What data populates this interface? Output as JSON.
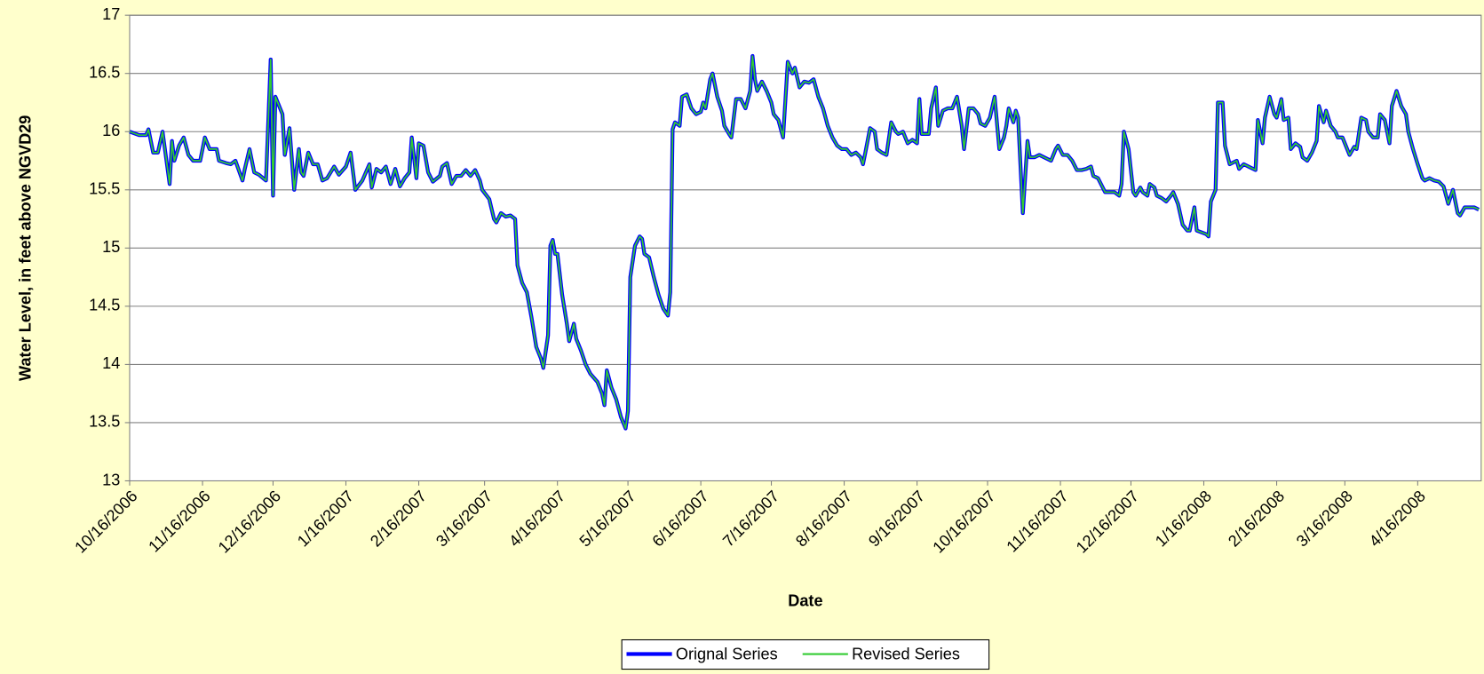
{
  "chart_data": {
    "type": "line",
    "y_label": "Water Level, in feet above NGVD29",
    "x_label": "Date",
    "ylim": [
      13,
      17
    ],
    "yticks": [
      13,
      13.5,
      14,
      14.5,
      15,
      15.5,
      16,
      16.5,
      17
    ],
    "xlim": [
      "10/16/2006",
      "5/13/2008"
    ],
    "xticks": [
      "10/16/2006",
      "11/16/2006",
      "12/16/2006",
      "1/16/2007",
      "2/16/2007",
      "3/16/2007",
      "4/16/2007",
      "5/16/2007",
      "6/16/2007",
      "7/16/2007",
      "8/16/2007",
      "9/16/2007",
      "10/16/2007",
      "11/16/2007",
      "12/16/2007",
      "1/16/2008",
      "2/16/2008",
      "3/16/2008",
      "4/16/2008"
    ],
    "grid": true,
    "legend": "bottom",
    "x": [
      "10/16/2006",
      "10/20/2006",
      "10/23/2006",
      "10/24/2006",
      "10/26/2006",
      "10/28/2006",
      "10/30/2006",
      "11/2/2006",
      "11/3/2006",
      "11/4/2006",
      "11/6/2006",
      "11/8/2006",
      "11/10/2006",
      "11/12/2006",
      "11/15/2006",
      "11/17/2006",
      "11/19/2006",
      "11/22/2006",
      "11/23/2006",
      "11/26/2006",
      "11/28/2006",
      "11/30/2006",
      "12/3/2006",
      "12/4/2006",
      "12/6/2006",
      "12/8/2006",
      "12/10/2006",
      "12/13/2006",
      "12/15/2006",
      "12/16/2006",
      "12/17/2006",
      "12/20/2006",
      "12/21/2006",
      "12/23/2006",
      "12/25/2006",
      "12/27/2006",
      "12/28/2006",
      "12/29/2006",
      "12/31/2006",
      "1/2/2007",
      "1/4/2007",
      "1/6/2007",
      "1/8/2007",
      "1/11/2007",
      "1/13/2007",
      "1/16/2007",
      "1/18/2007",
      "1/20/2007",
      "1/23/2007",
      "1/26/2007",
      "1/27/2007",
      "1/29/2007",
      "1/31/2007",
      "2/2/2007",
      "2/4/2007",
      "2/6/2007",
      "2/8/2007",
      "2/10/2007",
      "2/12/2007",
      "2/13/2007",
      "2/15/2007",
      "2/16/2007",
      "2/18/2007",
      "2/20/2007",
      "2/22/2007",
      "2/25/2007",
      "2/26/2007",
      "2/28/2007",
      "3/2/2007",
      "3/4/2007",
      "3/6/2007",
      "3/8/2007",
      "3/10/2007",
      "3/12/2007",
      "3/14/2007",
      "3/15/2007",
      "3/18/2007",
      "3/20/2007",
      "3/21/2007",
      "3/23/2007",
      "3/25/2007",
      "3/27/2007",
      "3/29/2007",
      "3/30/2007",
      "4/1/2007",
      "4/3/2007",
      "4/5/2007",
      "4/7/2007",
      "4/9/2007",
      "4/10/2007",
      "4/12/2007",
      "4/13/2007",
      "4/14/2007",
      "4/15/2007",
      "4/16/2007",
      "4/18/2007",
      "4/20/2007",
      "4/21/2007",
      "4/23/2007",
      "4/24/2007",
      "4/26/2007",
      "4/28/2007",
      "4/30/2007",
      "5/3/2007",
      "5/5/2007",
      "5/6/2007",
      "5/7/2007",
      "5/9/2007",
      "5/11/2007",
      "5/13/2007",
      "5/15/2007",
      "5/16/2007",
      "5/17/2007",
      "5/19/2007",
      "5/21/2007",
      "5/22/2007",
      "5/23/2007",
      "5/25/2007",
      "5/27/2007",
      "5/29/2007",
      "5/31/2007",
      "6/2/2007",
      "6/3/2007",
      "6/4/2007",
      "6/5/2007",
      "6/7/2007",
      "6/8/2007",
      "6/10/2007",
      "6/12/2007",
      "6/14/2007",
      "6/16/2007",
      "6/17/2007",
      "6/18/2007",
      "6/20/2007",
      "6/21/2007",
      "6/23/2007",
      "6/25/2007",
      "6/26/2007",
      "6/28/2007",
      "6/29/2007",
      "7/1/2007",
      "7/3/2007",
      "7/5/2007",
      "7/7/2007",
      "7/8/2007",
      "7/9/2007",
      "7/10/2007",
      "7/12/2007",
      "7/14/2007",
      "7/16/2007",
      "7/17/2007",
      "7/19/2007",
      "7/21/2007",
      "7/23/2007",
      "7/25/2007",
      "7/26/2007",
      "7/28/2007",
      "7/30/2007",
      "8/1/2007",
      "8/3/2007",
      "8/5/2007",
      "8/7/2007",
      "8/9/2007",
      "8/11/2007",
      "8/13/2007",
      "8/15/2007",
      "8/17/2007",
      "8/19/2007",
      "8/21/2007",
      "8/23/2007",
      "8/24/2007",
      "8/25/2007",
      "8/27/2007",
      "8/29/2007",
      "8/30/2007",
      "9/1/2007",
      "9/3/2007",
      "9/5/2007",
      "9/7/2007",
      "9/8/2007",
      "9/10/2007",
      "9/12/2007",
      "9/14/2007",
      "9/16/2007",
      "9/17/2007",
      "9/18/2007",
      "9/21/2007",
      "9/22/2007",
      "9/24/2007",
      "9/25/2007",
      "9/27/2007",
      "9/29/2007",
      "10/1/2007",
      "10/3/2007",
      "10/5/2007",
      "10/6/2007",
      "10/8/2007",
      "10/10/2007",
      "10/12/2007",
      "10/13/2007",
      "10/15/2007",
      "10/17/2007",
      "10/19/2007",
      "10/21/2007",
      "10/23/2007",
      "10/24/2007",
      "10/25/2007",
      "10/27/2007",
      "10/28/2007",
      "10/29/2007",
      "10/31/2007",
      "11/2/2007",
      "11/3/2007",
      "11/5/2007",
      "11/7/2007",
      "11/9/2007",
      "11/12/2007",
      "11/14/2007",
      "11/15/2007",
      "11/17/2007",
      "11/19/2007",
      "11/21/2007",
      "11/23/2007",
      "11/25/2007",
      "11/27/2007",
      "11/29/2007",
      "11/30/2007",
      "12/2/2007",
      "12/4/2007",
      "12/5/2007",
      "12/8/2007",
      "12/9/2007",
      "12/11/2007",
      "12/12/2007",
      "12/13/2007",
      "12/15/2007",
      "12/17/2007",
      "12/18/2007",
      "12/20/2007",
      "12/21/2007",
      "12/23/2007",
      "12/24/2007",
      "12/26/2007",
      "12/27/2007",
      "12/29/2007",
      "12/31/2007",
      "1/2/2008",
      "1/3/2008",
      "1/5/2008",
      "1/7/2008",
      "1/9/2008",
      "1/10/2008",
      "1/12/2008",
      "1/13/2008",
      "1/17/2008",
      "1/18/2008",
      "1/19/2008",
      "1/21/2008",
      "1/22/2008",
      "1/24/2008",
      "1/25/2008",
      "1/27/2008",
      "1/30/2008",
      "1/31/2008",
      "2/2/2008",
      "2/4/2008",
      "2/7/2008",
      "2/8/2008",
      "2/10/2008",
      "2/11/2008",
      "2/13/2008",
      "2/15/2008",
      "2/16/2008",
      "2/18/2008",
      "2/19/2008",
      "2/21/2008",
      "2/22/2008",
      "2/24/2008",
      "2/26/2008",
      "2/27/2008",
      "2/29/2008",
      "3/2/2008",
      "3/4/2008",
      "3/5/2008",
      "3/7/2008",
      "3/8/2008",
      "3/10/2008",
      "3/12/2008",
      "3/13/2008",
      "3/15/2008",
      "3/17/2008",
      "3/18/2008",
      "3/20/2008",
      "3/21/2008",
      "3/23/2008",
      "3/25/2008",
      "3/26/2008",
      "3/28/2008",
      "3/30/2008",
      "3/31/2008",
      "4/2/2008",
      "4/4/2008",
      "4/5/2008",
      "4/7/2008",
      "4/9/2008",
      "4/11/2008",
      "4/12/2008",
      "4/14/2008",
      "4/16/2008",
      "4/18/2008",
      "4/19/2008",
      "4/21/2008",
      "4/23/2008",
      "4/25/2008",
      "4/27/2008",
      "4/29/2008",
      "5/1/2008",
      "5/3/2008",
      "5/4/2008",
      "5/6/2008",
      "5/8/2008",
      "5/10/2008",
      "5/12/2008"
    ],
    "series": [
      {
        "name": "Orignal Series",
        "color": "#0000ff",
        "values": [
          16.0,
          15.97,
          15.97,
          16.02,
          15.82,
          15.82,
          16.0,
          15.55,
          15.92,
          15.75,
          15.88,
          15.95,
          15.8,
          15.75,
          15.75,
          15.95,
          15.85,
          15.85,
          15.75,
          15.73,
          15.72,
          15.75,
          15.58,
          15.68,
          15.85,
          15.65,
          15.63,
          15.58,
          16.62,
          15.45,
          16.3,
          16.15,
          15.8,
          16.03,
          15.5,
          15.85,
          15.65,
          15.62,
          15.82,
          15.72,
          15.72,
          15.58,
          15.6,
          15.7,
          15.63,
          15.7,
          15.82,
          15.5,
          15.58,
          15.72,
          15.52,
          15.68,
          15.65,
          15.7,
          15.55,
          15.68,
          15.53,
          15.6,
          15.65,
          15.95,
          15.6,
          15.9,
          15.88,
          15.65,
          15.57,
          15.62,
          15.7,
          15.73,
          15.55,
          15.62,
          15.62,
          15.67,
          15.62,
          15.67,
          15.58,
          15.5,
          15.42,
          15.25,
          15.22,
          15.3,
          15.27,
          15.28,
          15.25,
          14.85,
          14.7,
          14.62,
          14.4,
          14.15,
          14.05,
          13.97,
          14.25,
          15.02,
          15.07,
          14.95,
          14.95,
          14.6,
          14.35,
          14.2,
          14.35,
          14.22,
          14.12,
          14.0,
          13.92,
          13.85,
          13.75,
          13.65,
          13.95,
          13.8,
          13.7,
          13.55,
          13.45,
          13.6,
          14.75,
          15.02,
          15.1,
          15.08,
          14.95,
          14.92,
          14.75,
          14.6,
          14.48,
          14.42,
          14.62,
          16.02,
          16.08,
          16.05,
          16.3,
          16.32,
          16.2,
          16.15,
          16.17,
          16.25,
          16.2,
          16.45,
          16.5,
          16.3,
          16.18,
          16.05,
          15.98,
          15.95,
          16.28,
          16.28,
          16.2,
          16.35,
          16.65,
          16.45,
          16.35,
          16.43,
          16.35,
          16.25,
          16.15,
          16.1,
          15.95,
          16.6,
          16.5,
          16.55,
          16.38,
          16.43,
          16.42,
          16.45,
          16.3,
          16.2,
          16.05,
          15.95,
          15.88,
          15.85,
          15.85,
          15.8,
          15.82,
          15.78,
          15.72,
          15.82,
          16.03,
          16.0,
          15.85,
          15.82,
          15.8,
          16.08,
          16.0,
          15.98,
          16.0,
          15.9,
          15.93,
          15.9,
          16.28,
          15.98,
          15.98,
          16.2,
          16.38,
          16.05,
          16.18,
          16.2,
          16.2,
          16.3,
          16.05,
          15.85,
          16.2,
          16.2,
          16.15,
          16.07,
          16.05,
          16.12,
          16.3,
          15.85,
          15.95,
          16.05,
          16.2,
          16.08,
          16.18,
          16.12,
          15.3,
          15.92,
          15.78,
          15.78,
          15.8,
          15.78,
          15.75,
          15.85,
          15.88,
          15.8,
          15.8,
          15.75,
          15.67,
          15.67,
          15.68,
          15.7,
          15.62,
          15.6,
          15.52,
          15.48,
          15.48,
          15.48,
          15.45,
          15.55,
          16.0,
          15.85,
          15.48,
          15.45,
          15.52,
          15.48,
          15.45,
          15.55,
          15.52,
          15.45,
          15.43,
          15.4,
          15.45,
          15.48,
          15.38,
          15.2,
          15.15,
          15.15,
          15.35,
          15.15,
          15.12,
          15.1,
          15.4,
          15.5,
          16.25,
          16.25,
          15.88,
          15.72,
          15.75,
          15.68,
          15.72,
          15.7,
          15.67,
          16.1,
          15.9,
          16.12,
          16.3,
          16.15,
          16.12,
          16.28,
          16.1,
          16.12,
          15.85,
          15.9,
          15.87,
          15.78,
          15.75,
          15.82,
          15.92,
          16.22,
          16.08,
          16.18,
          16.05,
          16.0,
          15.95,
          15.95,
          15.85,
          15.8,
          15.87,
          15.85,
          16.12,
          16.1,
          16.0,
          15.95,
          15.95,
          16.15,
          16.1,
          15.9,
          16.22,
          16.35,
          16.22,
          16.15,
          16.0,
          15.85,
          15.72,
          15.6,
          15.58,
          15.6,
          15.58,
          15.57,
          15.53,
          15.38,
          15.5,
          15.3,
          15.28,
          15.35,
          15.35,
          15.35,
          15.33
        ]
      },
      {
        "name": "Revised Series",
        "color": "#33cc33",
        "values": [
          16.0,
          15.97,
          15.97,
          16.02,
          15.82,
          15.82,
          16.0,
          15.55,
          15.92,
          15.75,
          15.88,
          15.95,
          15.8,
          15.75,
          15.75,
          15.95,
          15.85,
          15.85,
          15.75,
          15.73,
          15.72,
          15.75,
          15.58,
          15.68,
          15.85,
          15.65,
          15.63,
          15.58,
          16.62,
          15.45,
          16.3,
          16.15,
          15.8,
          16.03,
          15.5,
          15.85,
          15.65,
          15.62,
          15.82,
          15.72,
          15.72,
          15.58,
          15.6,
          15.7,
          15.63,
          15.7,
          15.82,
          15.5,
          15.58,
          15.72,
          15.52,
          15.68,
          15.65,
          15.7,
          15.55,
          15.68,
          15.53,
          15.6,
          15.65,
          15.95,
          15.6,
          15.9,
          15.88,
          15.65,
          15.57,
          15.62,
          15.7,
          15.73,
          15.55,
          15.62,
          15.62,
          15.67,
          15.62,
          15.67,
          15.58,
          15.5,
          15.42,
          15.25,
          15.22,
          15.3,
          15.27,
          15.28,
          15.25,
          14.85,
          14.7,
          14.62,
          14.4,
          14.15,
          14.05,
          13.97,
          14.25,
          15.02,
          15.07,
          14.95,
          14.95,
          14.6,
          14.35,
          14.2,
          14.35,
          14.22,
          14.12,
          14.0,
          13.92,
          13.85,
          13.75,
          13.65,
          13.95,
          13.8,
          13.7,
          13.55,
          13.45,
          13.6,
          14.75,
          15.02,
          15.1,
          15.08,
          14.95,
          14.92,
          14.75,
          14.6,
          14.48,
          14.42,
          14.62,
          16.02,
          16.08,
          16.05,
          16.3,
          16.32,
          16.2,
          16.15,
          16.17,
          16.25,
          16.2,
          16.45,
          16.5,
          16.3,
          16.18,
          16.05,
          15.98,
          15.95,
          16.28,
          16.28,
          16.2,
          16.35,
          16.65,
          16.45,
          16.35,
          16.43,
          16.35,
          16.25,
          16.15,
          16.1,
          15.95,
          16.6,
          16.5,
          16.55,
          16.38,
          16.43,
          16.42,
          16.45,
          16.3,
          16.2,
          16.05,
          15.95,
          15.88,
          15.85,
          15.85,
          15.8,
          15.82,
          15.78,
          15.72,
          15.82,
          16.03,
          16.0,
          15.85,
          15.82,
          15.8,
          16.08,
          16.0,
          15.98,
          16.0,
          15.9,
          15.93,
          15.9,
          16.28,
          15.98,
          15.98,
          16.2,
          16.38,
          16.05,
          16.18,
          16.2,
          16.2,
          16.3,
          16.05,
          15.85,
          16.2,
          16.2,
          16.15,
          16.07,
          16.05,
          16.12,
          16.3,
          15.85,
          15.95,
          16.05,
          16.2,
          16.08,
          16.18,
          16.12,
          15.3,
          15.92,
          15.78,
          15.78,
          15.8,
          15.78,
          15.75,
          15.85,
          15.88,
          15.8,
          15.8,
          15.75,
          15.67,
          15.67,
          15.68,
          15.7,
          15.62,
          15.6,
          15.52,
          15.48,
          15.48,
          15.48,
          15.45,
          15.55,
          16.0,
          15.85,
          15.48,
          15.45,
          15.52,
          15.48,
          15.45,
          15.55,
          15.52,
          15.45,
          15.43,
          15.4,
          15.45,
          15.48,
          15.38,
          15.2,
          15.15,
          15.15,
          15.35,
          15.15,
          15.12,
          15.1,
          15.4,
          15.5,
          16.25,
          16.25,
          15.88,
          15.72,
          15.75,
          15.68,
          15.72,
          15.7,
          15.67,
          16.1,
          15.9,
          16.12,
          16.3,
          16.15,
          16.12,
          16.28,
          16.1,
          16.12,
          15.85,
          15.9,
          15.87,
          15.78,
          15.75,
          15.82,
          15.92,
          16.22,
          16.08,
          16.18,
          16.05,
          16.0,
          15.95,
          15.95,
          15.85,
          15.8,
          15.87,
          15.85,
          16.12,
          16.1,
          16.0,
          15.95,
          15.95,
          16.15,
          16.1,
          15.9,
          16.22,
          16.35,
          16.22,
          16.15,
          16.0,
          15.85,
          15.72,
          15.6,
          15.58,
          15.6,
          15.58,
          15.57,
          15.53,
          15.38,
          15.5,
          15.3,
          15.28,
          15.35,
          15.35,
          15.35,
          15.33
        ]
      }
    ]
  }
}
